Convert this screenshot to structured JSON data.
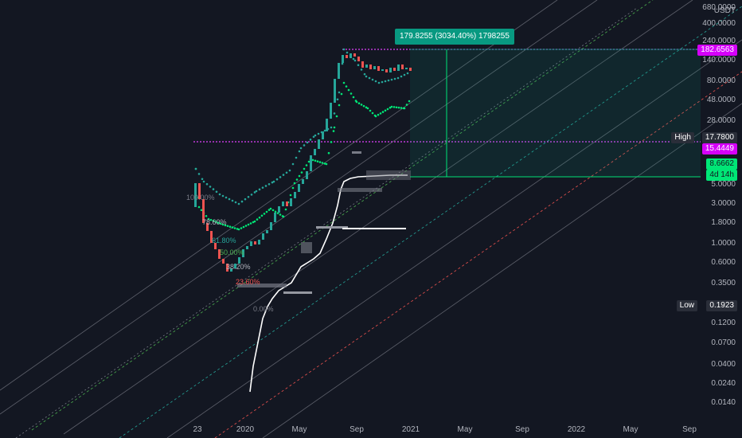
{
  "axis": {
    "unit": "USDT",
    "price_labels": [
      "680.0000",
      "400.0000",
      "240.0000",
      "140.0000",
      "80.0000",
      "48.0000",
      "28.0000",
      "5.0000",
      "3.0000",
      "1.8000",
      "1.0000",
      "0.6000",
      "0.3500",
      "0.1200",
      "0.0700",
      "0.0400",
      "0.0240",
      "0.0140"
    ],
    "time_labels": [
      "23",
      "2020",
      "May",
      "Sep",
      "2021",
      "May",
      "Sep",
      "2022",
      "May",
      "Sep"
    ]
  },
  "tags": {
    "target": "182.6563",
    "high_label": "High",
    "high_value": "17.7800",
    "current_alt": "15.4449",
    "current": "8.6662",
    "countdown": "4d 14h",
    "low_label": "Low",
    "low_value": "0.1923"
  },
  "measure": {
    "text": "179.8255 (3034.40%) 1798255"
  },
  "fib_levels": [
    "100.00%",
    "78.60%",
    "61.80%",
    "50.00%",
    "38.20%",
    "23.60%",
    "0.00%"
  ],
  "colors": {
    "background": "#131722",
    "up": "#26a69a",
    "down": "#ef5350",
    "fib_line": "#e040fb",
    "green_line": "#00e676",
    "teal": "#089981",
    "target_tag": "#d500f9",
    "high_tag": "#2a2e39",
    "current_tag": "#00e676"
  }
}
